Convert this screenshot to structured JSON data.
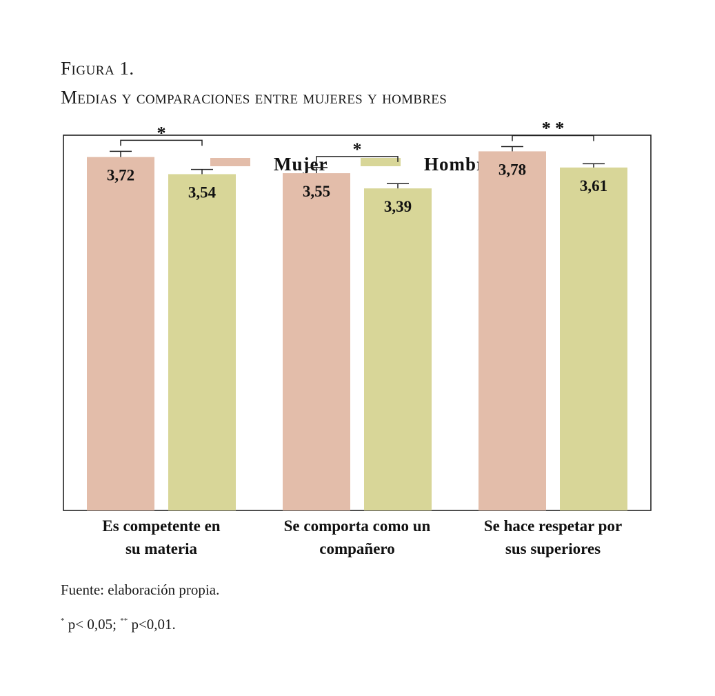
{
  "figure": {
    "label": "Figura 1.",
    "title": "Medias y comparaciones entre mujeres y hombres"
  },
  "chart_data": {
    "type": "bar",
    "title": "",
    "xlabel": "",
    "ylabel": "",
    "categories": [
      [
        "Es competente en",
        "su materia"
      ],
      [
        "Se comporta como un",
        "compañero"
      ],
      [
        "Se hace respetar por",
        "sus superiores"
      ]
    ],
    "series": [
      {
        "name": "Mujer",
        "color": "#e3bdaa",
        "values": [
          3.72,
          3.55,
          3.78
        ],
        "labels": [
          "3,72",
          "3,55",
          "3,78"
        ],
        "errors": [
          0.06,
          0.06,
          0.05
        ]
      },
      {
        "name": "Hombre",
        "color": "#d8d698",
        "values": [
          3.54,
          3.39,
          3.61
        ],
        "labels": [
          "3,54",
          "3,39",
          "3,61"
        ],
        "errors": [
          0.05,
          0.05,
          0.04
        ]
      }
    ],
    "significance": [
      "*",
      "*",
      "* *"
    ],
    "ylim": [
      0,
      3.95
    ],
    "legend": "top-center",
    "grid": false
  },
  "footer": {
    "source": "Fuente: elaboración propia.",
    "note_sig1": "*",
    "note_text1": " p< 0,05; ",
    "note_sig2": "**",
    "note_text2": " p<0,01."
  }
}
